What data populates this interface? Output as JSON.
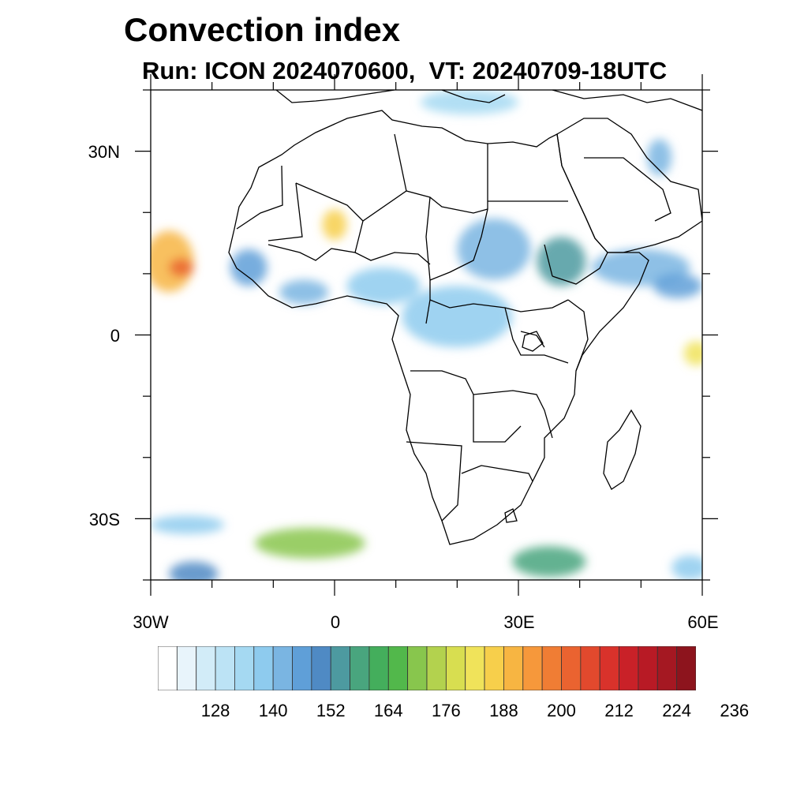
{
  "title": "Convection index",
  "subtitle": "Run: ICON 2024070600,  VT: 20240709-18UTC",
  "axes": {
    "lat_labels": [
      {
        "value": 30,
        "label": "30N"
      },
      {
        "value": 0,
        "label": "0"
      },
      {
        "value": -30,
        "label": "30S"
      }
    ],
    "lon_labels": [
      {
        "value": -30,
        "label": "30W"
      },
      {
        "value": 0,
        "label": "0"
      },
      {
        "value": 30,
        "label": "30E"
      },
      {
        "value": 60,
        "label": "60E"
      }
    ],
    "lon_range": [
      -30,
      60
    ],
    "lat_range": [
      -40,
      40
    ],
    "minor_lat_ticks": [
      -40,
      -20,
      -10,
      10,
      20,
      40
    ],
    "minor_lon_ticks": [
      -20,
      -10,
      10,
      20,
      40,
      50
    ]
  },
  "colorbar": {
    "colors": [
      "#ffffff",
      "#e8f4fb",
      "#d2ecf8",
      "#bce3f5",
      "#a5d9f2",
      "#8ecbee",
      "#7ab5e2",
      "#5f9fd8",
      "#4f8ac4",
      "#4d9aa0",
      "#49a57e",
      "#44ae5c",
      "#52b84b",
      "#88c64d",
      "#b3d24e",
      "#d8de50",
      "#f0e35a",
      "#f7cf4b",
      "#f7b542",
      "#f6983b",
      "#f07d34",
      "#ea6330",
      "#e2492d",
      "#d9322b",
      "#c92128",
      "#b81a25",
      "#a51822",
      "#8d141d"
    ],
    "tick_labels": [
      "128",
      "140",
      "152",
      "164",
      "176",
      "188",
      "200",
      "212",
      "224",
      "236"
    ]
  },
  "features": [
    {
      "name": "west-atlantic-tropical",
      "lon": -27,
      "lat": 12,
      "rx": 4,
      "ry": 5,
      "level": 18
    },
    {
      "name": "west-atlantic-tropical-core",
      "lon": -25,
      "lat": 11,
      "rx": 2,
      "ry": 1.5,
      "level": 21
    },
    {
      "name": "guinea-coast",
      "lon": -14,
      "lat": 11,
      "rx": 3,
      "ry": 3,
      "level": 7
    },
    {
      "name": "mali-cell",
      "lon": 0,
      "lat": 18,
      "rx": 2,
      "ry": 2.5,
      "level": 17
    },
    {
      "name": "west-africa-coast",
      "lon": -5,
      "lat": 7,
      "rx": 4,
      "ry": 2,
      "level": 6
    },
    {
      "name": "nigeria-band",
      "lon": 8,
      "lat": 8,
      "rx": 6,
      "ry": 3,
      "level": 5
    },
    {
      "name": "central-africa",
      "lon": 20,
      "lat": 3,
      "rx": 9,
      "ry": 5,
      "level": 5
    },
    {
      "name": "sudan-cell",
      "lon": 26,
      "lat": 14,
      "rx": 6,
      "ry": 5,
      "level": 6
    },
    {
      "name": "ethiopia-cell",
      "lon": 37,
      "lat": 12,
      "rx": 4,
      "ry": 4,
      "level": 9
    },
    {
      "name": "arabian-sea",
      "lon": 50,
      "lat": 11,
      "rx": 8,
      "ry": 3,
      "level": 6
    },
    {
      "name": "indian-ocean-east",
      "lon": 59,
      "lat": -3,
      "rx": 2,
      "ry": 2,
      "level": 16
    },
    {
      "name": "persian-gulf",
      "lon": 53,
      "lat": 29,
      "rx": 2,
      "ry": 3,
      "level": 6
    },
    {
      "name": "mediterranean",
      "lon": 22,
      "lat": 38,
      "rx": 8,
      "ry": 2,
      "level": 4
    },
    {
      "name": "south-atlantic-front",
      "lon": -4,
      "lat": -34,
      "rx": 9,
      "ry": 2.5,
      "level": 13
    },
    {
      "name": "south-atlantic-front-west",
      "lon": -24,
      "lat": -31,
      "rx": 6,
      "ry": 1.5,
      "level": 5
    },
    {
      "name": "southwest-corner",
      "lon": -23,
      "lat": -39,
      "rx": 4,
      "ry": 2,
      "level": 8
    },
    {
      "name": "south-indian-ocean",
      "lon": 35,
      "lat": -37,
      "rx": 6,
      "ry": 2.5,
      "level": 10
    },
    {
      "name": "southeast-corner",
      "lon": 58,
      "lat": -38,
      "rx": 3,
      "ry": 2,
      "level": 5
    },
    {
      "name": "somalia-east",
      "lon": 56,
      "lat": 8,
      "rx": 4,
      "ry": 2,
      "level": 7
    }
  ]
}
